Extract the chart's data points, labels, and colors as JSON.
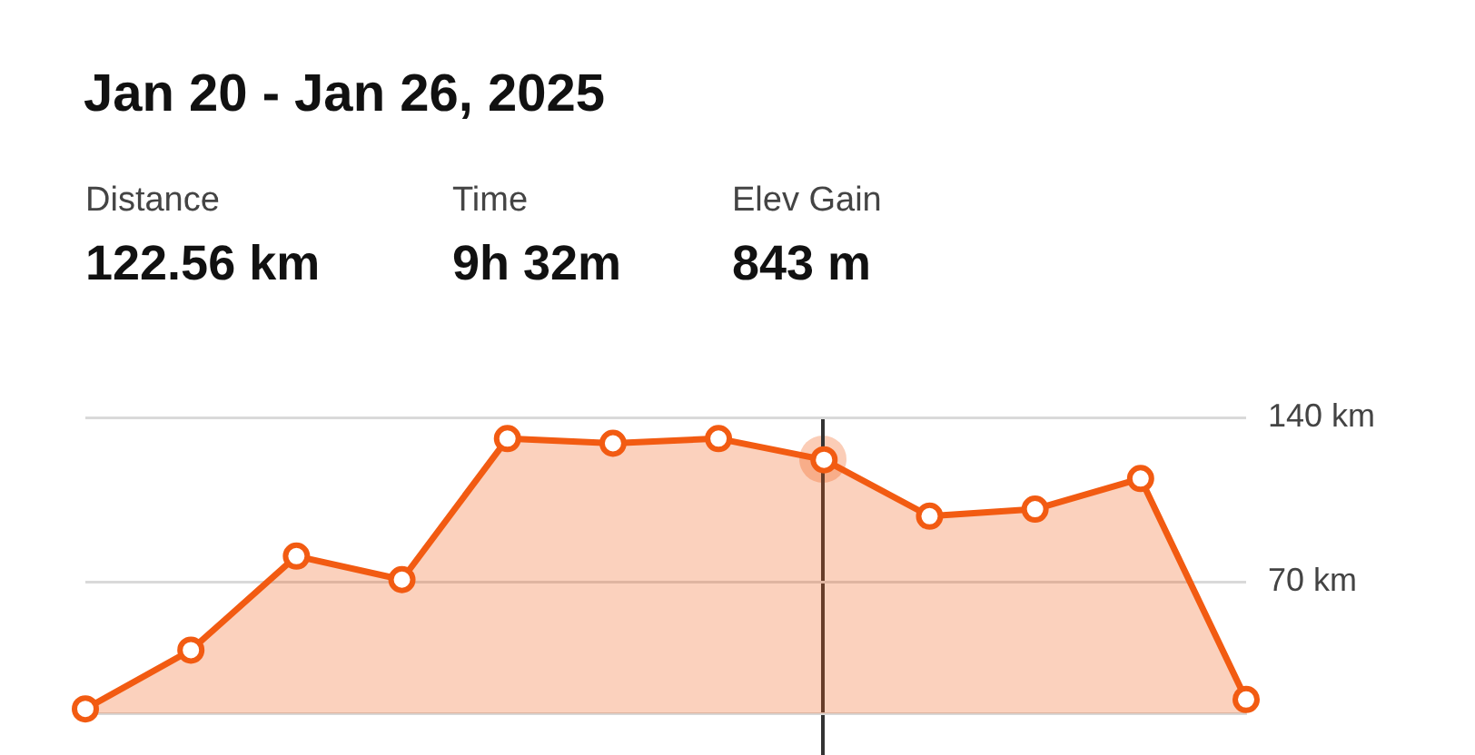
{
  "chart_data": {
    "type": "area",
    "title": "Jan 20 - Jan 26, 2025",
    "annotations": [
      "Distance",
      "122.56 km",
      "Time",
      "9h 32m",
      "Elev Gain",
      "843 m"
    ],
    "categories": [
      null,
      null,
      null,
      null,
      null,
      null,
      null,
      null,
      null,
      null,
      null,
      null
    ],
    "series": [
      {
        "color": "#f25b12",
        "values": [
          16,
          41,
          81,
          71,
          131,
          129,
          131,
          122,
          98,
          101,
          114,
          20
        ]
      }
    ],
    "ylim": [
      14,
      140
    ],
    "yticks": [
      {
        "value": 70,
        "label": "70 km"
      },
      {
        "value": 140,
        "label": "140 km"
      }
    ],
    "tick_labels": "y",
    "grid": "y",
    "legend": false,
    "marker": "circle",
    "line_style": "solid"
  }
}
